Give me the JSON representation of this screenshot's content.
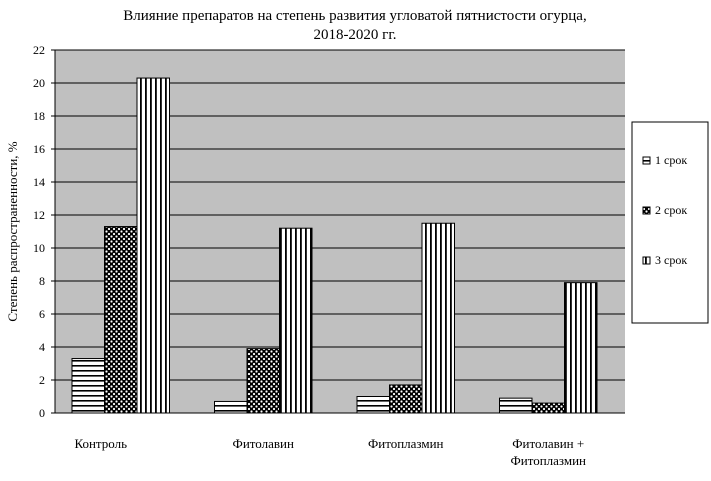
{
  "chart_data": {
    "type": "bar",
    "title": [
      "Влияние  препаратов на степень развития угловатой пятнистости огурца,",
      "2018-2020  гг."
    ],
    "xlabel": "",
    "ylabel": "Степень распространенности, %",
    "ylim": [
      0,
      22
    ],
    "yticks": [
      0,
      2,
      4,
      6,
      8,
      10,
      12,
      14,
      16,
      18,
      20,
      22
    ],
    "grid": true,
    "legend_position": "right",
    "categories": [
      [
        "Контроль"
      ],
      [
        "Фитолавин"
      ],
      [
        "Фитоплазмин"
      ],
      [
        "Фитолавин +",
        "Фитоплазмин"
      ]
    ],
    "series": [
      {
        "name": "1 срок",
        "pattern": "horizontal-stripes",
        "values": [
          3.3,
          0.7,
          1.0,
          0.9
        ]
      },
      {
        "name": "2 срок",
        "pattern": "checker",
        "values": [
          11.3,
          3.9,
          1.7,
          0.6
        ]
      },
      {
        "name": "3 срок",
        "pattern": "vertical-stripes",
        "values": [
          20.3,
          11.2,
          11.5,
          7.9
        ]
      }
    ],
    "colors": {
      "plot_bg": "#c0c0c0",
      "grid": "#000000"
    }
  }
}
